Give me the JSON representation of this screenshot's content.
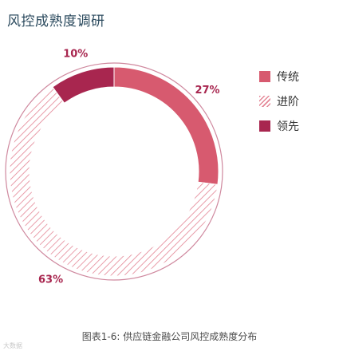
{
  "title": "风控成熟度调研",
  "caption": "图表1-6: 供应链金融公司风控成熟度分布",
  "watermark": "大数据",
  "colors": {
    "traditional": "#d75a6f",
    "advanced": "#e48696",
    "leading": "#a8264f",
    "outline": "#a8264f"
  },
  "chart_data": {
    "type": "pie",
    "categories": [
      "传统",
      "进阶",
      "领先"
    ],
    "values": [
      27,
      63,
      10
    ],
    "data_labels": [
      "27%",
      "63%",
      "10%"
    ],
    "legend": [
      "传统",
      "进阶",
      "领先"
    ],
    "legend_position": "right",
    "style": "donut",
    "series_fills": [
      "solid",
      "hatched",
      "solid"
    ]
  }
}
